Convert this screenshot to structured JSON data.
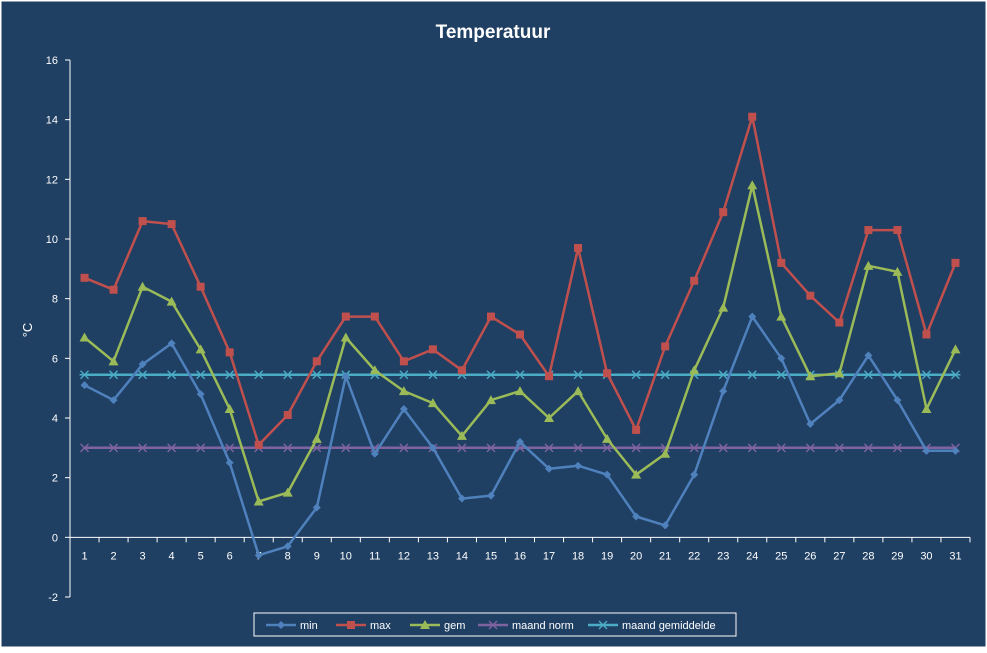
{
  "chart_data": {
    "type": "line",
    "title": "Temperatuur",
    "xlabel": "",
    "ylabel": "°C",
    "ylim": [
      -2,
      16
    ],
    "yticks": [
      -2,
      0,
      2,
      4,
      6,
      8,
      10,
      12,
      14,
      16
    ],
    "categories": [
      "1",
      "2",
      "3",
      "4",
      "5",
      "6",
      "7",
      "8",
      "9",
      "10",
      "11",
      "12",
      "13",
      "14",
      "15",
      "16",
      "17",
      "18",
      "19",
      "20",
      "21",
      "22",
      "23",
      "24",
      "25",
      "26",
      "27",
      "28",
      "29",
      "30",
      "31"
    ],
    "grid": false,
    "legend_position": "bottom",
    "colors": {
      "background": "#1f3f63",
      "frame": "#ffffff",
      "text": "#ffffff",
      "axis": "#ffffff",
      "legend_bg": "#1f3f63"
    },
    "series": [
      {
        "name": "min",
        "color": "#4f81bd",
        "marker": "diamond",
        "values": [
          5.1,
          4.6,
          5.8,
          6.5,
          4.8,
          2.5,
          -0.6,
          -0.3,
          1.0,
          5.4,
          2.8,
          4.3,
          3.0,
          1.3,
          1.4,
          3.2,
          2.3,
          2.4,
          2.1,
          0.7,
          0.4,
          2.1,
          4.9,
          7.4,
          6.0,
          3.8,
          4.6,
          6.1,
          4.6,
          2.9,
          2.9
        ]
      },
      {
        "name": "max",
        "color": "#c0504d",
        "marker": "square",
        "values": [
          8.7,
          8.3,
          10.6,
          10.5,
          8.4,
          6.2,
          3.1,
          4.1,
          5.9,
          7.4,
          7.4,
          5.9,
          6.3,
          5.6,
          7.4,
          6.8,
          5.4,
          9.7,
          5.5,
          3.6,
          6.4,
          8.6,
          10.9,
          14.1,
          9.2,
          8.1,
          7.2,
          10.3,
          10.3,
          6.8,
          9.2
        ]
      },
      {
        "name": "gem",
        "color": "#9bbb59",
        "marker": "triangle",
        "values": [
          6.7,
          5.9,
          8.4,
          7.9,
          6.3,
          4.3,
          1.2,
          1.5,
          3.3,
          6.7,
          5.6,
          4.9,
          4.5,
          3.4,
          4.6,
          4.9,
          4.0,
          4.9,
          3.3,
          2.1,
          2.8,
          5.6,
          7.7,
          11.8,
          7.4,
          5.4,
          5.5,
          9.1,
          8.9,
          4.3,
          6.3
        ]
      },
      {
        "name": "maand norm",
        "color": "#8064a2",
        "marker": "x",
        "values": [
          3.0,
          3.0,
          3.0,
          3.0,
          3.0,
          3.0,
          3.0,
          3.0,
          3.0,
          3.0,
          3.0,
          3.0,
          3.0,
          3.0,
          3.0,
          3.0,
          3.0,
          3.0,
          3.0,
          3.0,
          3.0,
          3.0,
          3.0,
          3.0,
          3.0,
          3.0,
          3.0,
          3.0,
          3.0,
          3.0,
          3.0
        ]
      },
      {
        "name": "maand gemiddelde",
        "color": "#4bacc6",
        "marker": "star",
        "values": [
          5.45,
          5.45,
          5.45,
          5.45,
          5.45,
          5.45,
          5.45,
          5.45,
          5.45,
          5.45,
          5.45,
          5.45,
          5.45,
          5.45,
          5.45,
          5.45,
          5.45,
          5.45,
          5.45,
          5.45,
          5.45,
          5.45,
          5.45,
          5.45,
          5.45,
          5.45,
          5.45,
          5.45,
          5.45,
          5.45,
          5.45
        ]
      }
    ]
  }
}
